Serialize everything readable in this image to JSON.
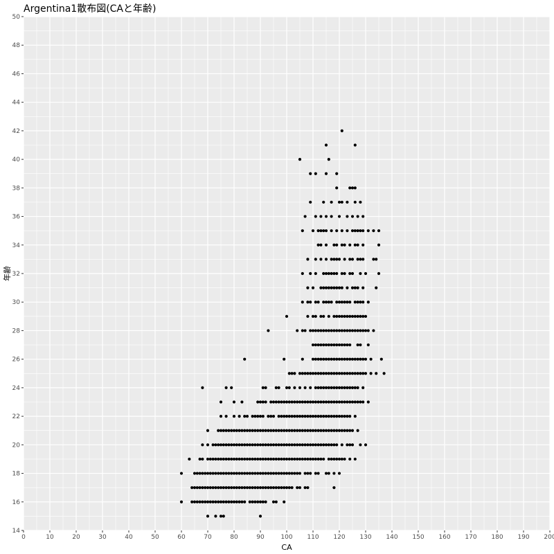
{
  "chart_data": {
    "type": "scatter",
    "title": "Argentina1散布図(CAと年齢)",
    "xlabel": "CA",
    "ylabel": "年齢",
    "xlim": [
      0,
      200
    ],
    "ylim": [
      14,
      50
    ],
    "xticks": [
      "0",
      "10",
      "20",
      "30",
      "40",
      "50",
      "60",
      "70",
      "80",
      "90",
      "100",
      "110",
      "120",
      "130",
      "140",
      "150",
      "160",
      "170",
      "180",
      "190",
      "200"
    ],
    "yticks": [
      "14",
      "16",
      "18",
      "20",
      "22",
      "24",
      "26",
      "28",
      "30",
      "32",
      "34",
      "36",
      "38",
      "40",
      "42",
      "44",
      "46",
      "48",
      "50"
    ],
    "grid": true,
    "colors": {
      "panel": "#ebebeb",
      "grid": "#ffffff",
      "point": "#000000",
      "tick": "#4d4d4d"
    },
    "points_by_age": [
      {
        "age": 15,
        "ca": [
          70,
          73,
          75,
          76,
          90
        ]
      },
      {
        "age": 16,
        "ca": [
          60,
          64,
          65,
          66,
          67,
          68,
          69,
          70,
          71,
          72,
          73,
          74,
          75,
          76,
          77,
          78,
          79,
          80,
          81,
          82,
          83,
          84,
          86,
          87,
          88,
          89,
          90,
          91,
          92,
          95,
          96,
          99
        ]
      },
      {
        "age": 17,
        "ca": [
          64,
          65,
          66,
          67,
          68,
          69,
          70,
          71,
          72,
          73,
          74,
          75,
          76,
          77,
          78,
          79,
          80,
          81,
          82,
          83,
          84,
          85,
          86,
          87,
          88,
          89,
          90,
          91,
          92,
          93,
          94,
          95,
          96,
          97,
          98,
          99,
          100,
          101,
          102,
          104,
          105,
          107,
          108,
          118
        ]
      },
      {
        "age": 18,
        "ca": [
          60,
          65,
          66,
          67,
          68,
          69,
          70,
          71,
          72,
          73,
          74,
          75,
          76,
          77,
          78,
          79,
          80,
          81,
          82,
          83,
          84,
          85,
          86,
          87,
          88,
          89,
          90,
          91,
          92,
          93,
          94,
          95,
          96,
          97,
          98,
          99,
          100,
          101,
          102,
          103,
          104,
          105,
          107,
          108,
          109,
          111,
          112,
          115,
          116,
          118,
          120
        ]
      },
      {
        "age": 19,
        "ca": [
          63,
          67,
          68,
          70,
          71,
          72,
          73,
          74,
          75,
          76,
          77,
          78,
          79,
          80,
          81,
          82,
          83,
          84,
          85,
          86,
          87,
          88,
          89,
          90,
          91,
          92,
          93,
          94,
          95,
          96,
          97,
          98,
          99,
          100,
          101,
          102,
          103,
          104,
          105,
          106,
          107,
          108,
          109,
          110,
          111,
          112,
          113,
          114,
          116,
          117,
          118,
          119,
          120,
          121,
          122,
          124,
          126
        ]
      },
      {
        "age": 20,
        "ca": [
          68,
          70,
          72,
          73,
          74,
          75,
          76,
          77,
          78,
          79,
          80,
          81,
          82,
          83,
          84,
          85,
          86,
          87,
          88,
          89,
          90,
          91,
          92,
          93,
          94,
          95,
          96,
          97,
          98,
          99,
          100,
          101,
          102,
          103,
          104,
          105,
          106,
          107,
          108,
          109,
          110,
          111,
          112,
          113,
          114,
          115,
          116,
          117,
          118,
          119,
          121,
          123,
          124,
          125,
          128,
          130
        ]
      },
      {
        "age": 21,
        "ca": [
          70,
          74,
          75,
          76,
          77,
          78,
          79,
          80,
          81,
          82,
          83,
          84,
          85,
          86,
          87,
          88,
          89,
          90,
          91,
          92,
          93,
          94,
          95,
          96,
          97,
          98,
          99,
          100,
          101,
          102,
          103,
          104,
          105,
          106,
          107,
          108,
          109,
          110,
          111,
          112,
          113,
          114,
          115,
          116,
          117,
          118,
          119,
          120,
          121,
          122,
          123,
          124,
          125,
          127
        ]
      },
      {
        "age": 22,
        "ca": [
          75,
          77,
          80,
          82,
          84,
          85,
          87,
          88,
          89,
          90,
          91,
          93,
          94,
          95,
          97,
          98,
          99,
          100,
          101,
          102,
          103,
          104,
          105,
          106,
          107,
          108,
          109,
          110,
          111,
          112,
          113,
          114,
          115,
          116,
          117,
          118,
          119,
          120,
          121,
          122,
          123,
          124,
          126
        ]
      },
      {
        "age": 23,
        "ca": [
          75,
          80,
          83,
          89,
          90,
          91,
          92,
          94,
          95,
          96,
          97,
          98,
          99,
          100,
          101,
          102,
          103,
          104,
          105,
          106,
          107,
          108,
          109,
          110,
          111,
          112,
          113,
          114,
          115,
          116,
          117,
          118,
          119,
          120,
          121,
          122,
          123,
          124,
          125,
          126,
          127,
          128,
          129,
          131
        ]
      },
      {
        "age": 24,
        "ca": [
          68,
          77,
          79,
          91,
          92,
          96,
          97,
          100,
          101,
          103,
          105,
          107,
          109,
          111,
          112,
          113,
          114,
          115,
          116,
          117,
          118,
          119,
          120,
          121,
          122,
          123,
          124,
          125,
          126,
          127,
          129
        ]
      },
      {
        "age": 25,
        "ca": [
          101,
          102,
          103,
          105,
          106,
          107,
          108,
          109,
          110,
          111,
          112,
          113,
          114,
          115,
          116,
          117,
          118,
          119,
          120,
          121,
          122,
          123,
          124,
          125,
          126,
          127,
          128,
          129,
          130,
          132,
          134,
          137
        ]
      },
      {
        "age": 26,
        "ca": [
          84,
          99,
          106,
          110,
          111,
          112,
          113,
          114,
          115,
          116,
          117,
          118,
          119,
          120,
          121,
          122,
          123,
          124,
          125,
          126,
          127,
          128,
          129,
          130,
          132,
          136
        ]
      },
      {
        "age": 27,
        "ca": [
          110,
          111,
          112,
          113,
          114,
          115,
          116,
          117,
          118,
          119,
          120,
          121,
          122,
          123,
          124,
          127,
          128,
          131
        ]
      },
      {
        "age": 28,
        "ca": [
          93,
          104,
          106,
          107,
          109,
          110,
          111,
          112,
          113,
          114,
          115,
          116,
          117,
          118,
          119,
          120,
          121,
          122,
          123,
          124,
          125,
          126,
          127,
          128,
          129,
          130,
          131,
          133
        ]
      },
      {
        "age": 29,
        "ca": [
          100,
          108,
          110,
          111,
          113,
          114,
          116,
          118,
          119,
          120,
          121,
          122,
          123,
          124,
          125,
          126,
          127,
          128,
          129,
          130
        ]
      },
      {
        "age": 30,
        "ca": [
          106,
          108,
          109,
          111,
          112,
          114,
          115,
          116,
          117,
          119,
          120,
          121,
          122,
          123,
          124,
          126,
          127,
          128,
          129,
          131
        ]
      },
      {
        "age": 31,
        "ca": [
          108,
          110,
          113,
          114,
          115,
          116,
          117,
          118,
          119,
          120,
          121,
          123,
          125,
          126,
          127,
          129,
          134
        ]
      },
      {
        "age": 32,
        "ca": [
          106,
          109,
          111,
          114,
          115,
          116,
          117,
          118,
          119,
          121,
          122,
          124,
          125,
          128,
          130,
          135
        ]
      },
      {
        "age": 33,
        "ca": [
          108,
          111,
          113,
          115,
          117,
          118,
          119,
          120,
          122,
          124,
          125,
          127,
          128,
          129,
          133,
          134
        ]
      },
      {
        "age": 34,
        "ca": [
          112,
          113,
          115,
          118,
          119,
          121,
          122,
          124,
          126,
          127,
          129,
          135
        ]
      },
      {
        "age": 35,
        "ca": [
          106,
          110,
          112,
          113,
          114,
          115,
          117,
          119,
          121,
          123,
          125,
          126,
          127,
          128,
          129,
          131,
          133,
          135
        ]
      },
      {
        "age": 36,
        "ca": [
          107,
          111,
          113,
          115,
          117,
          120,
          123,
          125,
          127,
          129
        ]
      },
      {
        "age": 37,
        "ca": [
          109,
          114,
          117,
          120,
          121,
          123,
          126,
          128
        ]
      },
      {
        "age": 38,
        "ca": [
          119,
          124,
          125,
          126
        ]
      },
      {
        "age": 39,
        "ca": [
          109,
          111,
          115,
          119
        ]
      },
      {
        "age": 40,
        "ca": [
          105,
          116
        ]
      },
      {
        "age": 41,
        "ca": [
          115,
          126
        ]
      },
      {
        "age": 42,
        "ca": [
          121
        ]
      }
    ]
  }
}
